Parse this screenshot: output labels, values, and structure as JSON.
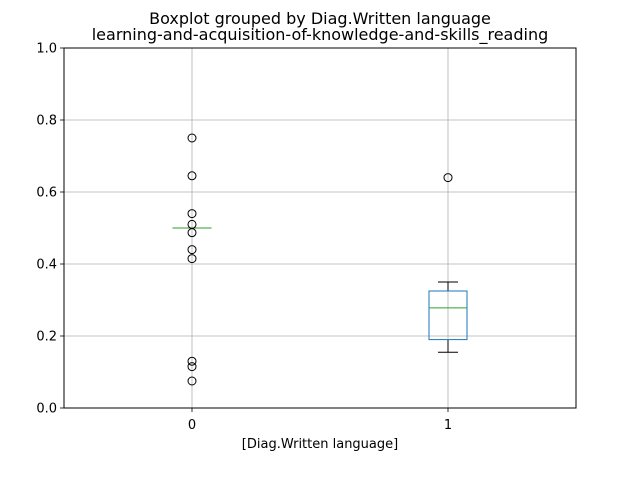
{
  "chart_data": {
    "type": "boxplot",
    "title": "Boxplot grouped by Diag.Written language",
    "subtitle": "learning-and-acquisition-of-knowledge-and-skills_reading",
    "xlabel": "[Diag.Written language]",
    "ylabel": "",
    "ylim": [
      0,
      1.0
    ],
    "yticks": [
      "0.0",
      "0.2",
      "0.4",
      "0.6",
      "0.8",
      "1.0"
    ],
    "grid": true,
    "categories": [
      "0",
      "1"
    ],
    "boxes": [
      {
        "category": "0",
        "q1": 0.5,
        "median": 0.5,
        "q3": 0.5,
        "whisker_low": 0.5,
        "whisker_high": 0.5,
        "outliers": [
          0.75,
          0.645,
          0.54,
          0.51,
          0.487,
          0.44,
          0.415,
          0.13,
          0.115,
          0.075
        ]
      },
      {
        "category": "1",
        "q1": 0.19,
        "median": 0.278,
        "q3": 0.325,
        "whisker_low": 0.155,
        "whisker_high": 0.35,
        "outliers": [
          0.64
        ]
      }
    ],
    "colors": {
      "box": "#1f77b4",
      "median": "#2ca02c",
      "whisker": "#000000",
      "grid": "#b0b0b0"
    }
  }
}
